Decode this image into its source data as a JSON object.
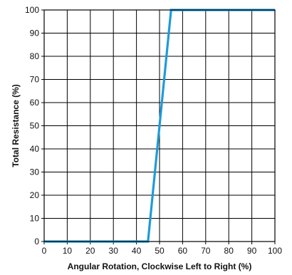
{
  "chart_data": {
    "type": "line",
    "xlabel": "Angular Rotation, Clockwise Left to Right (%)",
    "ylabel": "Total Resistance (%)",
    "xlim": [
      0,
      100
    ],
    "ylim": [
      0,
      100
    ],
    "x_ticks": [
      "0",
      "10",
      "20",
      "30",
      "40",
      "50",
      "60",
      "70",
      "80",
      "90",
      "100"
    ],
    "y_ticks": [
      "0",
      "10",
      "20",
      "30",
      "40",
      "50",
      "60",
      "70",
      "80",
      "90",
      "100"
    ],
    "grid": true,
    "legend": "none",
    "series": [
      {
        "color": "#1f9bd7",
        "points": [
          {
            "x": 0,
            "y": 0
          },
          {
            "x": 45,
            "y": 0
          },
          {
            "x": 55,
            "y": 100
          },
          {
            "x": 100,
            "y": 100
          }
        ]
      }
    ]
  }
}
